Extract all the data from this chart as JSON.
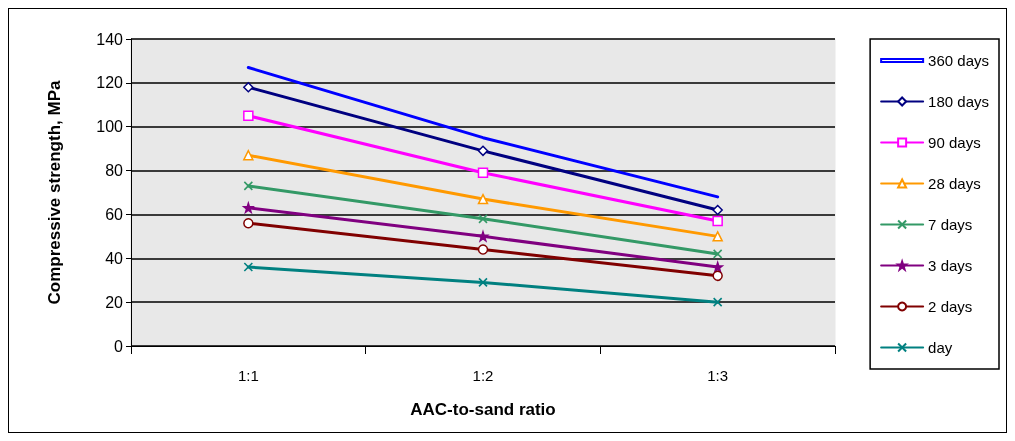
{
  "chart_data": {
    "type": "line",
    "xlabel": "AAC-to-sand ratio",
    "ylabel": "Compressive strength, MPa",
    "categories": [
      "1:1",
      "1:2",
      "1:3"
    ],
    "ylim": [
      0,
      140
    ],
    "yticks": [
      0,
      20,
      40,
      60,
      80,
      100,
      120,
      140
    ],
    "grid": "y",
    "legend": "right",
    "series": [
      {
        "name": "360 days",
        "color": "#0000ff",
        "marker": "none",
        "values": [
          127,
          95,
          68
        ]
      },
      {
        "name": "180 days",
        "color": "#000080",
        "marker": "diamond",
        "values": [
          118,
          89,
          62
        ]
      },
      {
        "name": "90 days",
        "color": "#ff00ff",
        "marker": "square",
        "values": [
          105,
          79,
          57
        ]
      },
      {
        "name": "28 days",
        "color": "#ff9900",
        "marker": "triangle",
        "values": [
          87,
          67,
          50
        ]
      },
      {
        "name": "7 days",
        "color": "#339966",
        "marker": "cross",
        "values": [
          73,
          58,
          42
        ]
      },
      {
        "name": "3 days",
        "color": "#800080",
        "marker": "star",
        "values": [
          63,
          50,
          36
        ]
      },
      {
        "name": "2 days",
        "color": "#800000",
        "marker": "circle",
        "values": [
          56,
          44,
          32
        ]
      },
      {
        "name": "day",
        "color": "#008080",
        "marker": "cross",
        "values": [
          36,
          29,
          20
        ]
      }
    ]
  }
}
